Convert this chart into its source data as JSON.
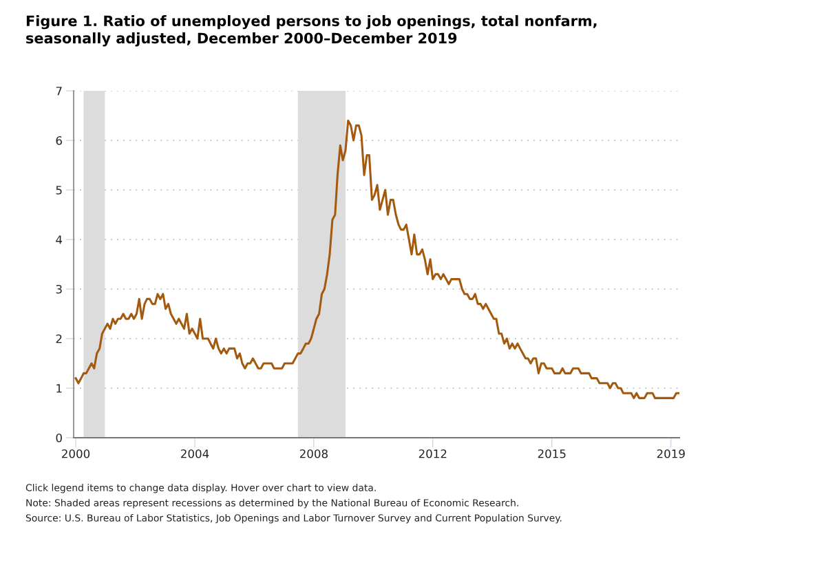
{
  "chart_data": {
    "type": "line",
    "title": "Figure 1. Ratio of unemployed persons to job openings, total nonfarm,\nseasonally adjusted, December 2000–December 2019",
    "x": [
      "2000-12",
      "2001-01",
      "2001-02",
      "2001-03",
      "2001-04",
      "2001-05",
      "2001-06",
      "2001-07",
      "2001-08",
      "2001-09",
      "2001-10",
      "2001-11",
      "2001-12",
      "2002-01",
      "2002-02",
      "2002-03",
      "2002-04",
      "2002-05",
      "2002-06",
      "2002-07",
      "2002-08",
      "2002-09",
      "2002-10",
      "2002-11",
      "2002-12",
      "2003-01",
      "2003-02",
      "2003-03",
      "2003-04",
      "2003-05",
      "2003-06",
      "2003-07",
      "2003-08",
      "2003-09",
      "2003-10",
      "2003-11",
      "2003-12",
      "2004-01",
      "2004-02",
      "2004-03",
      "2004-04",
      "2004-05",
      "2004-06",
      "2004-07",
      "2004-08",
      "2004-09",
      "2004-10",
      "2004-11",
      "2004-12",
      "2005-01",
      "2005-02",
      "2005-03",
      "2005-04",
      "2005-05",
      "2005-06",
      "2005-07",
      "2005-08",
      "2005-09",
      "2005-10",
      "2005-11",
      "2005-12",
      "2006-01",
      "2006-02",
      "2006-03",
      "2006-04",
      "2006-05",
      "2006-06",
      "2006-07",
      "2006-08",
      "2006-09",
      "2006-10",
      "2006-11",
      "2006-12",
      "2007-01",
      "2007-02",
      "2007-03",
      "2007-04",
      "2007-05",
      "2007-06",
      "2007-07",
      "2007-08",
      "2007-09",
      "2007-10",
      "2007-11",
      "2007-12",
      "2008-01",
      "2008-02",
      "2008-03",
      "2008-04",
      "2008-05",
      "2008-06",
      "2008-07",
      "2008-08",
      "2008-09",
      "2008-10",
      "2008-11",
      "2008-12",
      "2009-01",
      "2009-02",
      "2009-03",
      "2009-04",
      "2009-05",
      "2009-06",
      "2009-07",
      "2009-08",
      "2009-09",
      "2009-10",
      "2009-11",
      "2009-12",
      "2010-01",
      "2010-02",
      "2010-03",
      "2010-04",
      "2010-05",
      "2010-06",
      "2010-07",
      "2010-08",
      "2010-09",
      "2010-10",
      "2010-11",
      "2010-12",
      "2011-01",
      "2011-02",
      "2011-03",
      "2011-04",
      "2011-05",
      "2011-06",
      "2011-07",
      "2011-08",
      "2011-09",
      "2011-10",
      "2011-11",
      "2011-12",
      "2012-01",
      "2012-02",
      "2012-03",
      "2012-04",
      "2012-05",
      "2012-06",
      "2012-07",
      "2012-08",
      "2012-09",
      "2012-10",
      "2012-11",
      "2012-12",
      "2013-01",
      "2013-02",
      "2013-03",
      "2013-04",
      "2013-05",
      "2013-06",
      "2013-07",
      "2013-08",
      "2013-09",
      "2013-10",
      "2013-11",
      "2013-12",
      "2014-01",
      "2014-02",
      "2014-03",
      "2014-04",
      "2014-05",
      "2014-06",
      "2014-07",
      "2014-08",
      "2014-09",
      "2014-10",
      "2014-11",
      "2014-12",
      "2015-01",
      "2015-02",
      "2015-03",
      "2015-04",
      "2015-05",
      "2015-06",
      "2015-07",
      "2015-08",
      "2015-09",
      "2015-10",
      "2015-11",
      "2015-12",
      "2016-01",
      "2016-02",
      "2016-03",
      "2016-04",
      "2016-05",
      "2016-06",
      "2016-07",
      "2016-08",
      "2016-09",
      "2016-10",
      "2016-11",
      "2016-12",
      "2017-01",
      "2017-02",
      "2017-03",
      "2017-04",
      "2017-05",
      "2017-06",
      "2017-07",
      "2017-08",
      "2017-09",
      "2017-10",
      "2017-11",
      "2017-12",
      "2018-01",
      "2018-02",
      "2018-03",
      "2018-04",
      "2018-05",
      "2018-06",
      "2018-07",
      "2018-08",
      "2018-09",
      "2018-10",
      "2018-11",
      "2018-12",
      "2019-01",
      "2019-02",
      "2019-03",
      "2019-04",
      "2019-05",
      "2019-06",
      "2019-07",
      "2019-08",
      "2019-09",
      "2019-10",
      "2019-11",
      "2019-12"
    ],
    "series": [
      {
        "color": "#a35a0f",
        "values": [
          1.2,
          1.1,
          1.2,
          1.3,
          1.3,
          1.4,
          1.5,
          1.4,
          1.7,
          1.8,
          2.1,
          2.2,
          2.3,
          2.2,
          2.4,
          2.3,
          2.4,
          2.4,
          2.5,
          2.4,
          2.4,
          2.5,
          2.4,
          2.5,
          2.8,
          2.4,
          2.7,
          2.8,
          2.8,
          2.7,
          2.7,
          2.9,
          2.8,
          2.9,
          2.6,
          2.7,
          2.5,
          2.4,
          2.3,
          2.4,
          2.3,
          2.2,
          2.5,
          2.1,
          2.2,
          2.1,
          2.0,
          2.4,
          2.0,
          2.0,
          2.0,
          1.9,
          1.8,
          2.0,
          1.8,
          1.7,
          1.8,
          1.7,
          1.8,
          1.8,
          1.8,
          1.6,
          1.7,
          1.5,
          1.4,
          1.5,
          1.5,
          1.6,
          1.5,
          1.4,
          1.4,
          1.5,
          1.5,
          1.5,
          1.5,
          1.4,
          1.4,
          1.4,
          1.4,
          1.5,
          1.5,
          1.5,
          1.5,
          1.6,
          1.7,
          1.7,
          1.8,
          1.9,
          1.9,
          2.0,
          2.2,
          2.4,
          2.5,
          2.9,
          3.0,
          3.3,
          3.7,
          4.4,
          4.5,
          5.3,
          5.9,
          5.6,
          5.8,
          6.4,
          6.3,
          6.0,
          6.3,
          6.3,
          6.1,
          5.3,
          5.7,
          5.7,
          4.8,
          4.9,
          5.1,
          4.6,
          4.8,
          5.0,
          4.5,
          4.8,
          4.8,
          4.5,
          4.3,
          4.2,
          4.2,
          4.3,
          4.0,
          3.7,
          4.1,
          3.7,
          3.7,
          3.8,
          3.6,
          3.3,
          3.6,
          3.2,
          3.3,
          3.3,
          3.2,
          3.3,
          3.2,
          3.1,
          3.2,
          3.2,
          3.2,
          3.2,
          3.0,
          2.9,
          2.9,
          2.8,
          2.8,
          2.9,
          2.7,
          2.7,
          2.6,
          2.7,
          2.6,
          2.5,
          2.4,
          2.4,
          2.1,
          2.1,
          1.9,
          2.0,
          1.8,
          1.9,
          1.8,
          1.9,
          1.8,
          1.7,
          1.6,
          1.6,
          1.5,
          1.6,
          1.6,
          1.3,
          1.5,
          1.5,
          1.4,
          1.4,
          1.4,
          1.3,
          1.3,
          1.3,
          1.4,
          1.3,
          1.3,
          1.3,
          1.4,
          1.4,
          1.4,
          1.3,
          1.3,
          1.3,
          1.3,
          1.2,
          1.2,
          1.2,
          1.1,
          1.1,
          1.1,
          1.1,
          1.0,
          1.1,
          1.1,
          1.0,
          1.0,
          0.9,
          0.9,
          0.9,
          0.9,
          0.8,
          0.9,
          0.8,
          0.8,
          0.8,
          0.9,
          0.9,
          0.9,
          0.8,
          0.8,
          0.8,
          0.8,
          0.8,
          0.8,
          0.8,
          0.8,
          0.9,
          0.9
        ]
      }
    ],
    "xlim": [
      "2000-11-07",
      "2019-12-07"
    ],
    "xticks": [
      {
        "value": "2000-12",
        "label": "2000"
      },
      {
        "value": "2004-09",
        "label": "2004"
      },
      {
        "value": "2008-06",
        "label": "2008"
      },
      {
        "value": "2012-03",
        "label": "2012"
      },
      {
        "value": "2015-12",
        "label": "2015"
      },
      {
        "value": "2019-09",
        "label": "2019"
      }
    ],
    "ylim": [
      0,
      7
    ],
    "yticks": [
      0,
      1,
      2,
      3,
      4,
      5,
      6,
      7
    ],
    "grid": "y",
    "bands": [
      {
        "axis": "x",
        "from": "2001-03",
        "to": "2001-11",
        "color": "#dcdcdc"
      },
      {
        "axis": "x",
        "from": "2007-12",
        "to": "2009-06",
        "color": "#dcdcdc"
      }
    ],
    "annotations": [
      "Click legend items to change data display. Hover over chart to view data.",
      "Note: Shaded areas represent recessions as determined by the National Bureau of Economic Research.",
      "Source: U.S. Bureau of Labor Statistics, Job Openings and Labor Turnover Survey and Current Population Survey."
    ]
  }
}
